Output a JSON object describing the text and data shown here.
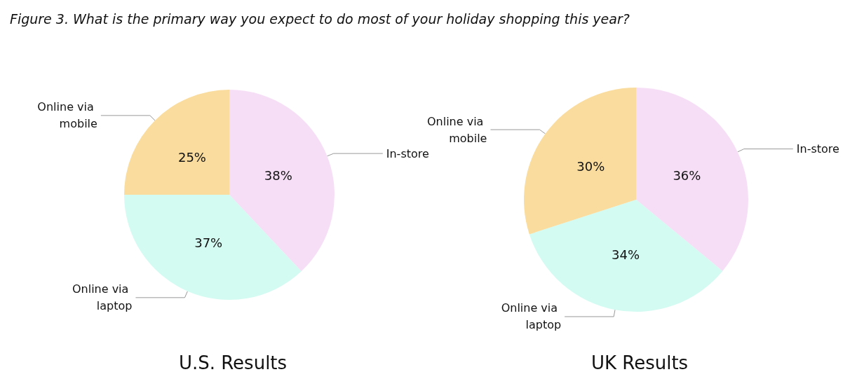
{
  "chart_data": [
    {
      "type": "pie",
      "title": "U.S. Results",
      "annotations": [
        "Figure 3. What is the primary way you expect to do most of your holiday shopping this year?"
      ],
      "categories": [
        "In-store",
        "Online via laptop",
        "Online via mobile"
      ],
      "values": [
        38,
        37,
        25
      ],
      "value_labels": [
        "38%",
        "37%",
        "25%"
      ],
      "colors": [
        "#f6dff6",
        "#d3fbf1",
        "#f9dc9e"
      ],
      "legend": false
    },
    {
      "type": "pie",
      "title": "UK Results",
      "categories": [
        "In-store",
        "Online via laptop",
        "Online via mobile"
      ],
      "values": [
        36,
        34,
        30
      ],
      "value_labels": [
        "36%",
        "34%",
        "30%"
      ],
      "colors": [
        "#f6dff6",
        "#d3fbf1",
        "#f9dc9e"
      ],
      "legend": false
    }
  ]
}
